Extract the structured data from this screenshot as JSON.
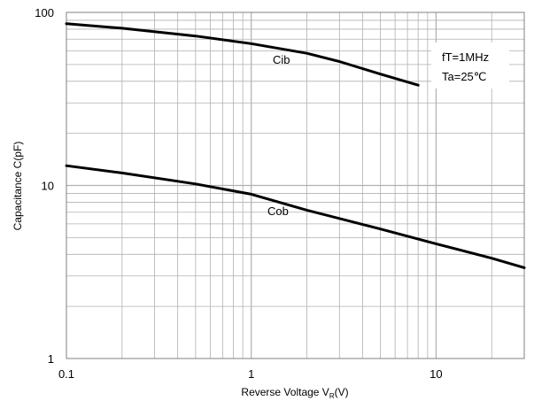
{
  "chart_data": {
    "type": "line",
    "xscale": "log",
    "yscale": "log",
    "xlim": [
      0.1,
      30
    ],
    "ylim": [
      1,
      100
    ],
    "xticks": [
      {
        "value": 0.1,
        "label": "0.1"
      },
      {
        "value": 1,
        "label": "1"
      },
      {
        "value": 10,
        "label": "10"
      }
    ],
    "yticks": [
      {
        "value": 1,
        "label": "1"
      },
      {
        "value": 10,
        "label": "10"
      },
      {
        "value": 100,
        "label": "100"
      }
    ],
    "xlabel": {
      "main": "Reverse Voltage  V",
      "sub": "R",
      "tail": "(V)"
    },
    "ylabel": "Capacitance  C(pF)",
    "grid": true,
    "series": [
      {
        "name": "Cib",
        "x": [
          0.1,
          0.2,
          0.5,
          1,
          2,
          3,
          5,
          8
        ],
        "y": [
          86,
          81,
          73,
          66,
          58,
          52,
          44,
          38
        ]
      },
      {
        "name": "Cob",
        "x": [
          0.1,
          0.2,
          0.5,
          1,
          2,
          5,
          10,
          20,
          30
        ],
        "y": [
          13,
          11.8,
          10.2,
          8.9,
          7.2,
          5.6,
          4.6,
          3.8,
          3.35
        ]
      }
    ],
    "annotations": [
      "fT=1MHz",
      "Ta=25℃"
    ],
    "colors": {
      "line": "#000000",
      "grid": "#b0b0b0",
      "frame": "#808080"
    }
  }
}
